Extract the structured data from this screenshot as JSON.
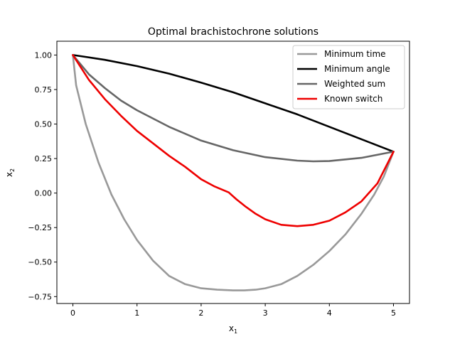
{
  "chart_data": {
    "type": "line",
    "title": "Optimal brachistochrone solutions",
    "xlabel": "x",
    "xlabel_sub": "1",
    "ylabel": "x",
    "ylabel_sub": "2",
    "xlim": [
      -0.25,
      5.25
    ],
    "ylim": [
      -0.8,
      1.1
    ],
    "xticks": [
      0,
      1,
      2,
      3,
      4,
      5
    ],
    "yticks": [
      -0.75,
      -0.5,
      -0.25,
      0.0,
      0.25,
      0.5,
      0.75,
      1.0
    ],
    "xtick_labels": [
      "0",
      "1",
      "2",
      "3",
      "4",
      "5"
    ],
    "ytick_labels": [
      "−0.75",
      "−0.50",
      "−0.25",
      "0.00",
      "0.25",
      "0.50",
      "0.75",
      "1.00"
    ],
    "grid": false,
    "legend_position": "top-right",
    "series": [
      {
        "name": "Minimum time",
        "color": "#999999",
        "x": [
          0,
          0.05,
          0.2,
          0.4,
          0.6,
          0.8,
          1.0,
          1.25,
          1.5,
          1.75,
          2.0,
          2.25,
          2.5,
          2.67,
          2.85,
          3.0,
          3.25,
          3.5,
          3.75,
          4.0,
          4.25,
          4.5,
          4.7,
          4.85,
          5.0
        ],
        "y": [
          1.0,
          0.78,
          0.5,
          0.22,
          -0.01,
          -0.19,
          -0.34,
          -0.49,
          -0.6,
          -0.66,
          -0.69,
          -0.7,
          -0.705,
          -0.705,
          -0.7,
          -0.69,
          -0.66,
          -0.6,
          -0.52,
          -0.42,
          -0.3,
          -0.15,
          -0.01,
          0.12,
          0.3
        ]
      },
      {
        "name": "Minimum angle",
        "color": "#000000",
        "x": [
          0,
          0.5,
          1.0,
          1.5,
          2.0,
          2.5,
          3.0,
          3.5,
          4.0,
          4.5,
          5.0
        ],
        "y": [
          1.0,
          0.965,
          0.92,
          0.865,
          0.8,
          0.73,
          0.65,
          0.57,
          0.48,
          0.39,
          0.3
        ]
      },
      {
        "name": "Weighted sum",
        "color": "#666666",
        "x": [
          0,
          0.25,
          0.5,
          0.75,
          1.0,
          1.5,
          2.0,
          2.5,
          3.0,
          3.5,
          3.75,
          4.0,
          4.5,
          5.0
        ],
        "y": [
          1.0,
          0.86,
          0.76,
          0.67,
          0.6,
          0.48,
          0.38,
          0.31,
          0.26,
          0.235,
          0.23,
          0.232,
          0.255,
          0.3
        ]
      },
      {
        "name": "Known switch",
        "color": "#ee0000",
        "x": [
          0,
          0.25,
          0.5,
          0.75,
          1.0,
          1.25,
          1.5,
          1.75,
          2.0,
          2.2,
          2.43,
          2.55,
          2.7,
          2.85,
          3.0,
          3.25,
          3.5,
          3.75,
          4.0,
          4.25,
          4.5,
          4.75,
          5.0
        ],
        "y": [
          1.0,
          0.82,
          0.68,
          0.56,
          0.45,
          0.36,
          0.27,
          0.19,
          0.1,
          0.05,
          0.005,
          -0.045,
          -0.1,
          -0.15,
          -0.19,
          -0.23,
          -0.24,
          -0.23,
          -0.2,
          -0.14,
          -0.06,
          0.07,
          0.3
        ]
      }
    ]
  }
}
